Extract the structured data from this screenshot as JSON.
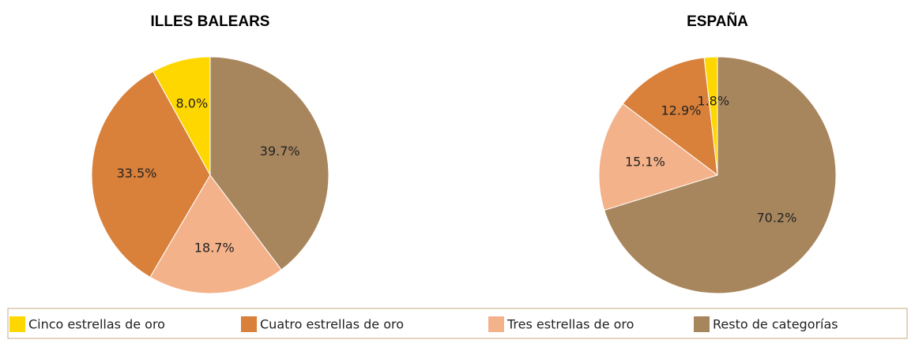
{
  "legend": {
    "categories": [
      "Cinco estrellas de oro",
      "Cuatro estrellas de oro",
      "Tres estrellas de oro",
      "Resto de categorías"
    ],
    "colors": [
      "#ffd700",
      "#d9803a",
      "#f4b28a",
      "#a8865d"
    ]
  },
  "chart_data": [
    {
      "type": "pie",
      "title": "ILLES BALEARS",
      "values": [
        8.0,
        33.5,
        18.7,
        39.7
      ],
      "value_labels": [
        "8.0%",
        "33.5%",
        "18.7%",
        "39.7%"
      ]
    },
    {
      "type": "pie",
      "title": "ESPAÑA",
      "values": [
        1.8,
        12.9,
        15.1,
        70.2
      ],
      "value_labels": [
        "1.8%",
        "12.9%",
        "15.1%",
        "70.2%"
      ]
    }
  ]
}
